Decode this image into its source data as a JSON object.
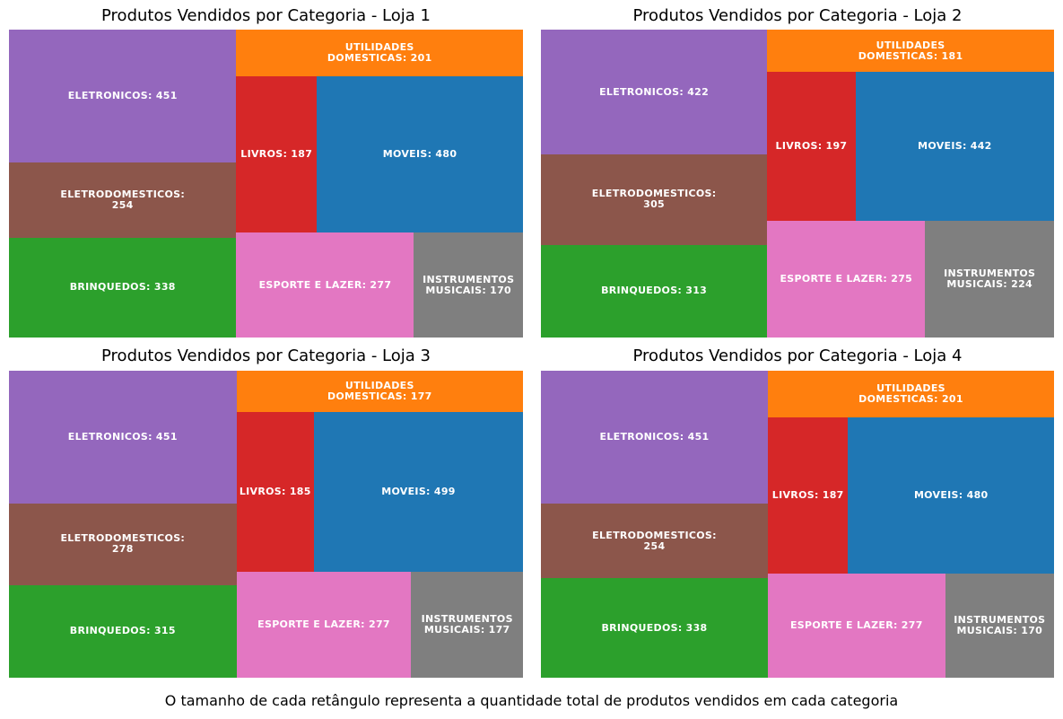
{
  "colors": {
    "ELETRONICOS": "#9467bd",
    "ELETRODOMESTICOS": "#8c564b",
    "BRINQUEDOS": "#2ca02c",
    "UTILIDADES DOMESTICAS": "#ff7f0e",
    "LIVROS": "#d62728",
    "MOVEIS": "#1f77b4",
    "ESPORTE E LAZER": "#e377c2",
    "INSTRUMENTOS MUSICAIS": "#7f7f7f"
  },
  "caption": "O tamanho de cada retângulo representa a quantidade total de produtos vendidos em cada categoria",
  "chart_data": [
    {
      "type": "treemap",
      "title": "Produtos Vendidos por Categoria - Loja 1",
      "categories": [
        "ELETRONICOS",
        "ELETRODOMESTICOS",
        "BRINQUEDOS",
        "UTILIDADES DOMESTICAS",
        "LIVROS",
        "MOVEIS",
        "ESPORTE E LAZER",
        "INSTRUMENTOS MUSICAIS"
      ],
      "values": [
        451,
        254,
        338,
        201,
        187,
        480,
        277,
        170
      ],
      "labels": [
        "ELETRONICOS: 451",
        "ELETRODOMESTICOS:\n254",
        "BRINQUEDOS: 338",
        "UTILIDADES\nDOMESTICAS: 201",
        "LIVROS: 187",
        "MOVEIS: 480",
        "ESPORTE E LAZER: 277",
        "INSTRUMENTOS\nMUSICAIS: 170"
      ]
    },
    {
      "type": "treemap",
      "title": "Produtos Vendidos por Categoria - Loja 2",
      "categories": [
        "ELETRONICOS",
        "ELETRODOMESTICOS",
        "BRINQUEDOS",
        "UTILIDADES DOMESTICAS",
        "LIVROS",
        "MOVEIS",
        "ESPORTE E LAZER",
        "INSTRUMENTOS MUSICAIS"
      ],
      "values": [
        422,
        305,
        313,
        181,
        197,
        442,
        275,
        224
      ],
      "labels": [
        "ELETRONICOS: 422",
        "ELETRODOMESTICOS:\n305",
        "BRINQUEDOS: 313",
        "UTILIDADES\nDOMESTICAS: 181",
        "LIVROS: 197",
        "MOVEIS: 442",
        "ESPORTE E LAZER: 275",
        "INSTRUMENTOS\nMUSICAIS: 224"
      ]
    },
    {
      "type": "treemap",
      "title": "Produtos Vendidos por Categoria - Loja 3",
      "categories": [
        "ELETRONICOS",
        "ELETRODOMESTICOS",
        "BRINQUEDOS",
        "UTILIDADES DOMESTICAS",
        "LIVROS",
        "MOVEIS",
        "ESPORTE E LAZER",
        "INSTRUMENTOS MUSICAIS"
      ],
      "values": [
        451,
        278,
        315,
        177,
        185,
        499,
        277,
        177
      ],
      "labels": [
        "ELETRONICOS: 451",
        "ELETRODOMESTICOS:\n278",
        "BRINQUEDOS: 315",
        "UTILIDADES\nDOMESTICAS: 177",
        "LIVROS: 185",
        "MOVEIS: 499",
        "ESPORTE E LAZER: 277",
        "INSTRUMENTOS\nMUSICAIS: 177"
      ]
    },
    {
      "type": "treemap",
      "title": "Produtos Vendidos por Categoria - Loja 4",
      "categories": [
        "ELETRONICOS",
        "ELETRODOMESTICOS",
        "BRINQUEDOS",
        "UTILIDADES DOMESTICAS",
        "LIVROS",
        "MOVEIS",
        "ESPORTE E LAZER",
        "INSTRUMENTOS MUSICAIS"
      ],
      "values": [
        451,
        254,
        338,
        201,
        187,
        480,
        277,
        170
      ],
      "labels": [
        "ELETRONICOS: 451",
        "ELETRODOMESTICOS:\n254",
        "BRINQUEDOS: 338",
        "UTILIDADES\nDOMESTICAS: 201",
        "LIVROS: 187",
        "MOVEIS: 480",
        "ESPORTE E LAZER: 277",
        "INSTRUMENTOS\nMUSICAIS: 170"
      ]
    }
  ]
}
